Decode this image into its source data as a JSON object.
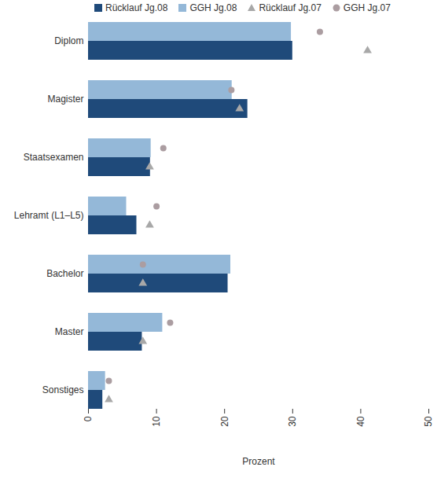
{
  "chart_data": {
    "type": "bar",
    "orientation": "horizontal",
    "legend": "top",
    "grid": false,
    "categories": [
      "Diplom",
      "Magister",
      "Staatsexamen",
      "Lehramt (L1–L5)",
      "Bachelor",
      "Master",
      "Sonstiges"
    ],
    "x_label": "Prozent",
    "xlim": [
      0,
      50
    ],
    "xticks": [
      0,
      10,
      20,
      30,
      40,
      50
    ],
    "series": [
      {
        "name": "Rücklauf Jg.08",
        "type": "bar",
        "color": "#1f4a7a",
        "values": [
          30,
          23.4,
          9.1,
          7.1,
          20.5,
          7.9,
          2.1
        ]
      },
      {
        "name": "GGH Jg.08",
        "type": "bar",
        "color": "#94b8d8",
        "values": [
          29.8,
          21.1,
          9.2,
          5.6,
          20.9,
          10.9,
          2.5
        ]
      },
      {
        "name": "Rücklauf Jg.07",
        "type": "scatter",
        "marker": "triangle",
        "color": "#a8a8a8",
        "values": [
          41,
          22.2,
          9,
          9,
          8,
          8,
          3
        ]
      },
      {
        "name": "GGH Jg.07",
        "type": "scatter",
        "marker": "circle",
        "color": "#ab9da1",
        "values": [
          34,
          21,
          11,
          10,
          8,
          12,
          3
        ]
      }
    ]
  }
}
